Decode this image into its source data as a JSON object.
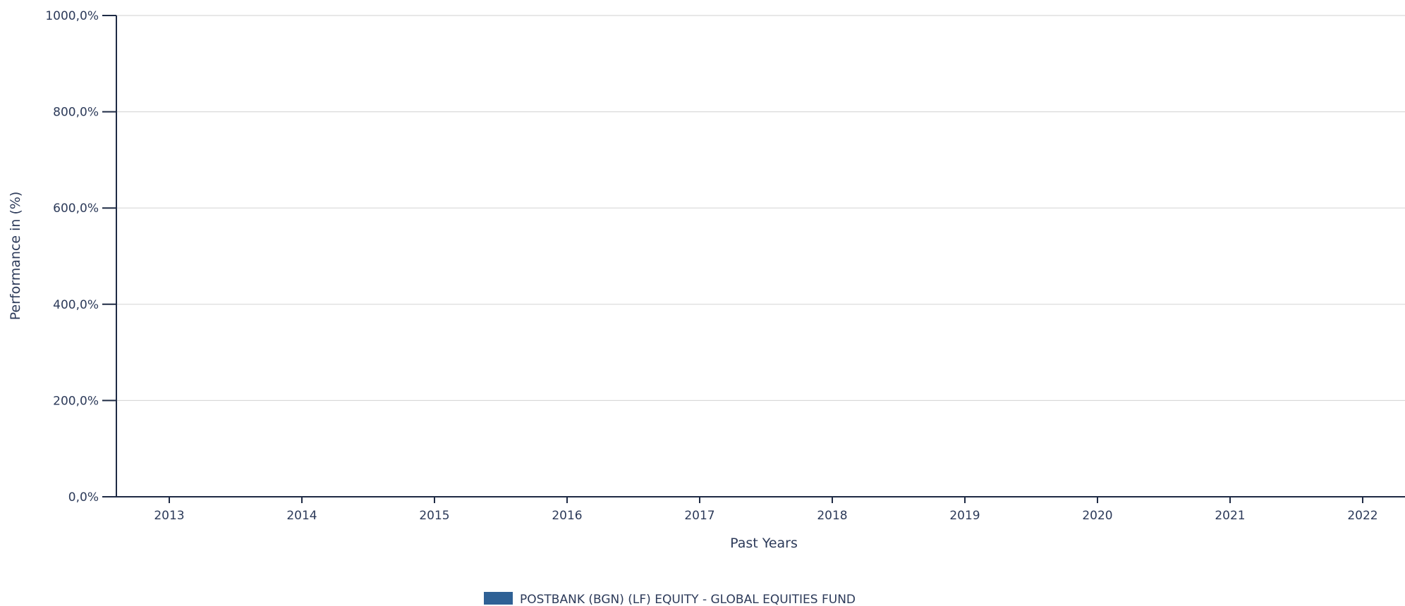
{
  "chart_data": {
    "type": "bar",
    "title": "",
    "xlabel": "Past Years",
    "ylabel": "Performance in (%)",
    "categories": [
      "2013",
      "2014",
      "2015",
      "2016",
      "2017",
      "2018",
      "2019",
      "2020",
      "2021",
      "2022"
    ],
    "ylim": [
      0,
      1000
    ],
    "yticks": [
      0,
      200,
      400,
      600,
      800,
      1000
    ],
    "ytick_labels": [
      "0,0%",
      "200,0%",
      "400,0%",
      "600,0%",
      "800,0%",
      "1000,0%"
    ],
    "grid": true,
    "legend_position": "bottom-center",
    "series": [
      {
        "name": "POSTBANK (BGN) (LF) EQUITY - GLOBAL EQUITIES FUND",
        "color": "#2f6195",
        "values": [
          null,
          null,
          null,
          null,
          null,
          null,
          null,
          null,
          null,
          null
        ]
      }
    ]
  },
  "colors": {
    "axis": "#1e2a44",
    "grid": "#d9d9d9",
    "text": "#2c3a59"
  }
}
